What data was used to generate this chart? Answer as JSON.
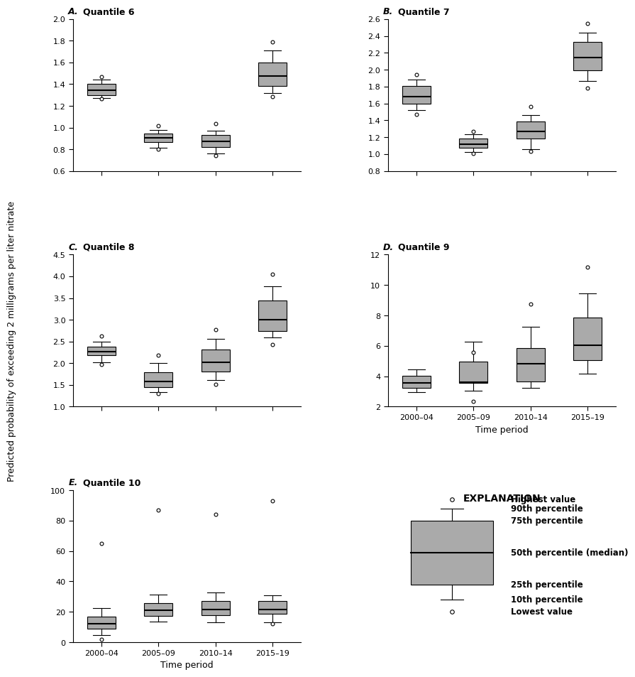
{
  "time_periods": [
    "2000–04",
    "2005–09",
    "2010–14",
    "2015–19"
  ],
  "panels": [
    {
      "label": "A.",
      "label2": "Quantile 6",
      "ylim": [
        0.6,
        2.0
      ],
      "yticks": [
        0.6,
        0.8,
        1.0,
        1.2,
        1.4,
        1.6,
        1.8,
        2.0
      ],
      "boxes": [
        {
          "p10": 1.27,
          "p25": 1.3,
          "p50": 1.345,
          "p75": 1.4,
          "p90": 1.435,
          "low": 1.275,
          "high": 1.44
        },
        {
          "p10": 0.815,
          "p25": 0.865,
          "p50": 0.905,
          "p75": 0.945,
          "p90": 0.975,
          "low": 0.815,
          "high": 0.975
        },
        {
          "p10": 0.765,
          "p25": 0.82,
          "p50": 0.875,
          "p75": 0.935,
          "p90": 0.97,
          "low": 0.765,
          "high": 0.97
        },
        {
          "p10": 1.315,
          "p25": 1.385,
          "p50": 1.475,
          "p75": 1.6,
          "p90": 1.71,
          "low": 1.315,
          "high": 1.71
        }
      ],
      "outliers_high": [
        1.47,
        1.02,
        1.04,
        1.79
      ],
      "outliers_low": [
        1.265,
        0.8,
        0.745,
        1.285
      ]
    },
    {
      "label": "B.",
      "label2": "Quantile 7",
      "ylim": [
        0.8,
        2.6
      ],
      "yticks": [
        0.8,
        1.0,
        1.2,
        1.4,
        1.6,
        1.8,
        2.0,
        2.2,
        2.4,
        2.6
      ],
      "boxes": [
        {
          "p10": 1.52,
          "p25": 1.595,
          "p50": 1.68,
          "p75": 1.81,
          "p90": 1.885,
          "low": 1.52,
          "high": 1.885
        },
        {
          "p10": 1.025,
          "p25": 1.075,
          "p50": 1.115,
          "p75": 1.185,
          "p90": 1.235,
          "low": 1.025,
          "high": 1.235
        },
        {
          "p10": 1.055,
          "p25": 1.185,
          "p50": 1.265,
          "p75": 1.385,
          "p90": 1.465,
          "low": 1.055,
          "high": 1.465
        },
        {
          "p10": 1.865,
          "p25": 1.995,
          "p50": 2.145,
          "p75": 2.325,
          "p90": 2.44,
          "low": 1.865,
          "high": 2.44
        }
      ],
      "outliers_high": [
        1.945,
        1.265,
        1.565,
        2.545
      ],
      "outliers_low": [
        1.47,
        1.01,
        1.035,
        1.785
      ]
    },
    {
      "label": "C.",
      "label2": "Quantile 8",
      "ylim": [
        1.0,
        4.5
      ],
      "yticks": [
        1.0,
        1.5,
        2.0,
        2.5,
        3.0,
        3.5,
        4.0,
        4.5
      ],
      "boxes": [
        {
          "p10": 2.02,
          "p25": 2.185,
          "p50": 2.27,
          "p75": 2.375,
          "p90": 2.495,
          "low": 2.02,
          "high": 2.495
        },
        {
          "p10": 1.335,
          "p25": 1.44,
          "p50": 1.575,
          "p75": 1.79,
          "p90": 2.005,
          "low": 1.335,
          "high": 2.005
        },
        {
          "p10": 1.605,
          "p25": 1.8,
          "p50": 2.02,
          "p75": 2.315,
          "p90": 2.555,
          "low": 1.605,
          "high": 2.555
        },
        {
          "p10": 2.595,
          "p25": 2.745,
          "p50": 3.005,
          "p75": 3.44,
          "p90": 3.765,
          "low": 2.595,
          "high": 3.765
        }
      ],
      "outliers_high": [
        2.63,
        2.19,
        2.77,
        4.05
      ],
      "outliers_low": [
        1.97,
        1.295,
        1.515,
        2.43
      ]
    },
    {
      "label": "D.",
      "label2": "Quantile 9",
      "ylim": [
        2,
        12
      ],
      "yticks": [
        2,
        4,
        6,
        8,
        10,
        12
      ],
      "boxes": [
        {
          "p10": 2.95,
          "p25": 3.25,
          "p50": 3.55,
          "p75": 4.05,
          "p90": 4.45,
          "low": 2.95,
          "high": 4.45
        },
        {
          "p10": 3.05,
          "p25": 3.55,
          "p50": 3.6,
          "p75": 4.95,
          "p90": 6.25,
          "low": 3.05,
          "high": 6.25
        },
        {
          "p10": 3.25,
          "p25": 3.65,
          "p50": 4.8,
          "p75": 5.85,
          "p90": 7.25,
          "low": 3.25,
          "high": 7.25
        },
        {
          "p10": 4.15,
          "p25": 5.05,
          "p50": 6.05,
          "p75": 7.85,
          "p90": 9.45,
          "low": 4.15,
          "high": 9.45
        }
      ],
      "outliers_high": [
        null,
        5.55,
        8.75,
        11.2
      ],
      "outliers_low": [
        null,
        2.35,
        null,
        null
      ]
    },
    {
      "label": "E.",
      "label2": "Quantile 10",
      "ylim": [
        0,
        100
      ],
      "yticks": [
        0,
        20,
        40,
        60,
        80,
        100
      ],
      "boxes": [
        {
          "p10": 4.5,
          "p25": 9.0,
          "p50": 12.0,
          "p75": 17.0,
          "p90": 22.5,
          "low": 4.5,
          "high": 22.5
        },
        {
          "p10": 13.5,
          "p25": 17.5,
          "p50": 21.0,
          "p75": 25.5,
          "p90": 31.5,
          "low": 13.5,
          "high": 31.5
        },
        {
          "p10": 13.0,
          "p25": 18.0,
          "p50": 21.5,
          "p75": 27.0,
          "p90": 32.5,
          "low": 13.0,
          "high": 32.5
        },
        {
          "p10": 13.0,
          "p25": 18.5,
          "p50": 21.5,
          "p75": 27.0,
          "p90": 31.0,
          "low": 13.0,
          "high": 31.0
        }
      ],
      "outliers_high": [
        65.0,
        87.0,
        84.0,
        93.0
      ],
      "outliers_low": [
        2.0,
        null,
        null,
        12.0
      ]
    }
  ],
  "box_color": "#aaaaaa",
  "median_color": "#000000",
  "whisker_color": "#000000",
  "xlabel": "Time period",
  "ylabel": "Predicted probability of exceeding 2 milligrams per liter nitrate",
  "explanation_items": [
    "Highest value",
    "90th percentile",
    "75th percentile",
    "50th percentile (median)",
    "25th percentile",
    "10th percentile",
    "Lowest value"
  ]
}
